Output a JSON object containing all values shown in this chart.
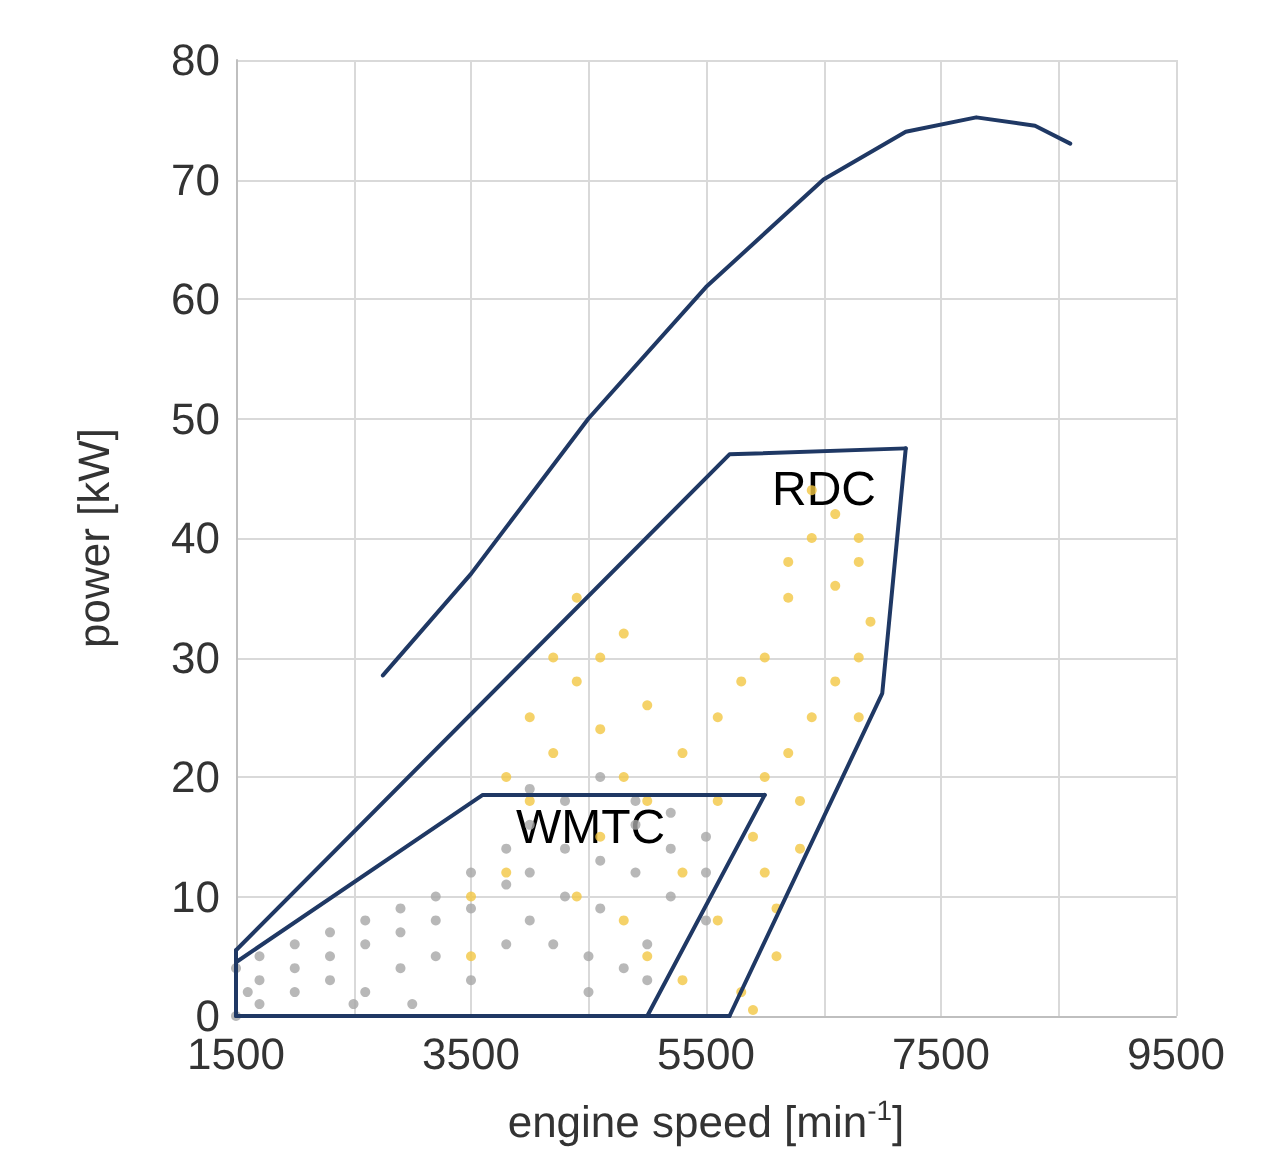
{
  "chart_data": {
    "type": "scatter",
    "xlabel": "engine speed [min$^{-1}$]",
    "ylabel": "power [kW]",
    "xlim": [
      1500,
      9500
    ],
    "ylim": [
      0,
      80
    ],
    "xticks": [
      1500,
      {
        "value": 2500,
        "label": null
      },
      3500,
      {
        "value": 4500,
        "label": null
      },
      5500,
      {
        "value": 6500,
        "label": null
      },
      7500,
      {
        "value": 8500,
        "label": null
      },
      9500
    ],
    "yticks": [
      0,
      10,
      20,
      30,
      40,
      50,
      60,
      70,
      80
    ],
    "grid": true,
    "marker": "circle",
    "annotations": [
      "RDC",
      "WMTC"
    ],
    "series": [
      {
        "color": "#a6a6a6",
        "x": [
          1500,
          1600,
          1500,
          1700,
          1700,
          1700,
          2000,
          2000,
          2000,
          2300,
          2300,
          2300,
          2600,
          2600,
          2600,
          2900,
          2900,
          2900,
          3200,
          3200,
          3200,
          3500,
          3500,
          3500,
          3800,
          3800,
          3800,
          4000,
          4000,
          4000,
          4000,
          4300,
          4300,
          4300,
          4600,
          4600,
          4600,
          4900,
          4900,
          4900,
          5200,
          5200,
          5200,
          5500,
          5500,
          5500,
          4500,
          4500,
          5000,
          5000,
          3000,
          2500,
          4200,
          4800
        ],
        "values": [
          0,
          2,
          4,
          1,
          3,
          5,
          2,
          4,
          6,
          3,
          5,
          7,
          2,
          6,
          8,
          4,
          7,
          9,
          5,
          8,
          10,
          3,
          9,
          12,
          6,
          11,
          14,
          8,
          12,
          16,
          19,
          10,
          14,
          18,
          9,
          13,
          20,
          12,
          16,
          18,
          10,
          14,
          17,
          8,
          12,
          15,
          2,
          5,
          3,
          6,
          1,
          1,
          6,
          4
        ]
      },
      {
        "color": "#f2c744",
        "x": [
          3500,
          3500,
          3800,
          3800,
          4000,
          4000,
          4200,
          4200,
          4400,
          4400,
          4400,
          4600,
          4600,
          4600,
          4800,
          4800,
          4800,
          5000,
          5000,
          5000,
          5300,
          5300,
          5300,
          5600,
          5600,
          5600,
          5800,
          5900,
          5800,
          6000,
          6000,
          6000,
          6200,
          6200,
          6200,
          6400,
          6400,
          6400,
          6600,
          6600,
          6600,
          6800,
          6800,
          6800,
          6800,
          6900,
          6300,
          6300,
          6100,
          6100,
          5900
        ],
        "values": [
          5,
          10,
          12,
          20,
          18,
          25,
          22,
          30,
          10,
          28,
          35,
          15,
          24,
          30,
          8,
          20,
          32,
          5,
          18,
          26,
          3,
          12,
          22,
          8,
          18,
          25,
          2,
          15,
          28,
          12,
          20,
          30,
          22,
          35,
          38,
          25,
          40,
          44,
          28,
          36,
          42,
          30,
          38,
          40,
          25,
          33,
          14,
          18,
          5,
          9,
          0.5
        ]
      },
      {
        "type": "line",
        "color": "#1f3864",
        "marker": "none",
        "x": [
          1500,
          3600,
          6000
        ],
        "values": [
          4.5,
          18.5,
          18.5
        ]
      },
      {
        "type": "line",
        "color": "#1f3864",
        "marker": "none",
        "x": [
          5000,
          6000
        ],
        "values": [
          0,
          18.5
        ]
      },
      {
        "type": "line",
        "color": "#1f3864",
        "marker": "none",
        "x": [
          1500,
          5700,
          7200
        ],
        "values": [
          5.5,
          47,
          47.5
        ]
      },
      {
        "type": "line",
        "color": "#1f3864",
        "marker": "none",
        "x": [
          5700,
          7000,
          7200
        ],
        "values": [
          0,
          27,
          47.5
        ]
      },
      {
        "type": "line",
        "color": "#1f3864",
        "marker": "none",
        "x": [
          1500,
          5700
        ],
        "values": [
          0,
          0
        ]
      },
      {
        "type": "line",
        "color": "#1f3864",
        "marker": "none",
        "x": [
          1500,
          1500
        ],
        "values": [
          0,
          5.5
        ]
      },
      {
        "type": "line",
        "color": "#1f3864",
        "marker": "none",
        "x": [
          2750,
          3500,
          4500,
          5500,
          6500,
          7200,
          7800,
          8300,
          8600
        ],
        "values": [
          28.5,
          37,
          50,
          61,
          70,
          74,
          75.2,
          74.5,
          73
        ]
      }
    ]
  }
}
